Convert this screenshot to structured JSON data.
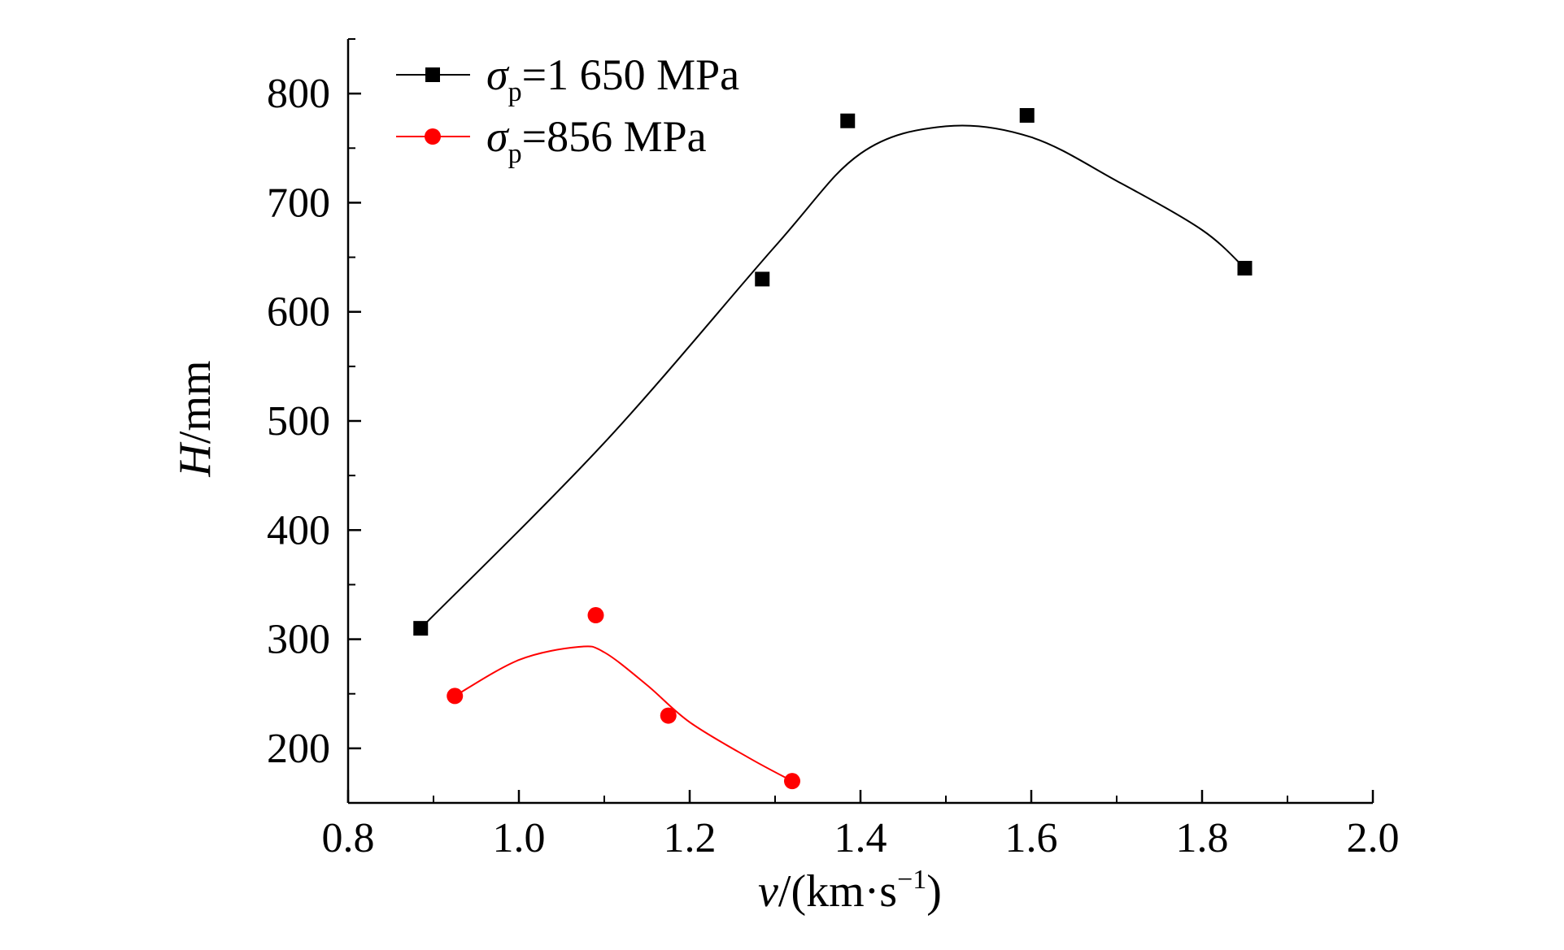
{
  "chart_data": {
    "type": "scatter",
    "title": "",
    "xlabel": "v/(km·s⁻¹)",
    "xlabel_parts": {
      "var": "v",
      "unit_open": "/(km·s",
      "unit_sup": "−1",
      "unit_close": ")"
    },
    "ylabel": "H/mm",
    "ylabel_parts": {
      "var": "H",
      "unit": "/mm"
    },
    "xlim": [
      0.8,
      2.0
    ],
    "ylim": [
      150,
      850
    ],
    "x_ticks": [
      0.8,
      1.0,
      1.2,
      1.4,
      1.6,
      1.8,
      2.0
    ],
    "x_tick_labels": [
      "0.8",
      "1.0",
      "1.2",
      "1.4",
      "1.6",
      "1.8",
      "2.0"
    ],
    "y_ticks": [
      200,
      300,
      400,
      500,
      600,
      700,
      800
    ],
    "y_tick_labels": [
      "200",
      "300",
      "400",
      "500",
      "600",
      "700",
      "800"
    ],
    "grid": false,
    "legend_position": "top-left",
    "series": [
      {
        "name": "σp=1 650 MPa",
        "label_parts": {
          "sym": "σ",
          "sub": "p",
          "rest": "=1 650 MPa"
        },
        "color": "#000000",
        "marker": "square",
        "x": [
          0.885,
          1.285,
          1.385,
          1.595,
          1.85
        ],
        "y": [
          310,
          630,
          775,
          780,
          640
        ],
        "fit": [
          [
            0.885,
            310
          ],
          [
            1.1,
            480
          ],
          [
            1.3,
            660
          ],
          [
            1.4,
            745
          ],
          [
            1.5,
            770
          ],
          [
            1.6,
            760
          ],
          [
            1.7,
            720
          ],
          [
            1.8,
            675
          ],
          [
            1.85,
            640
          ]
        ]
      },
      {
        "name": "σp=856 MPa",
        "label_parts": {
          "sym": "σ",
          "sub": "p",
          "rest": "=856 MPa"
        },
        "color": "#ff0000",
        "marker": "circle",
        "x": [
          0.925,
          1.09,
          1.175,
          1.32
        ],
        "y": [
          248,
          322,
          230,
          170
        ],
        "fit": [
          [
            0.925,
            248
          ],
          [
            1.0,
            281
          ],
          [
            1.07,
            293
          ],
          [
            1.1,
            288
          ],
          [
            1.15,
            258
          ],
          [
            1.2,
            224
          ],
          [
            1.27,
            191
          ],
          [
            1.32,
            170
          ]
        ]
      }
    ]
  }
}
